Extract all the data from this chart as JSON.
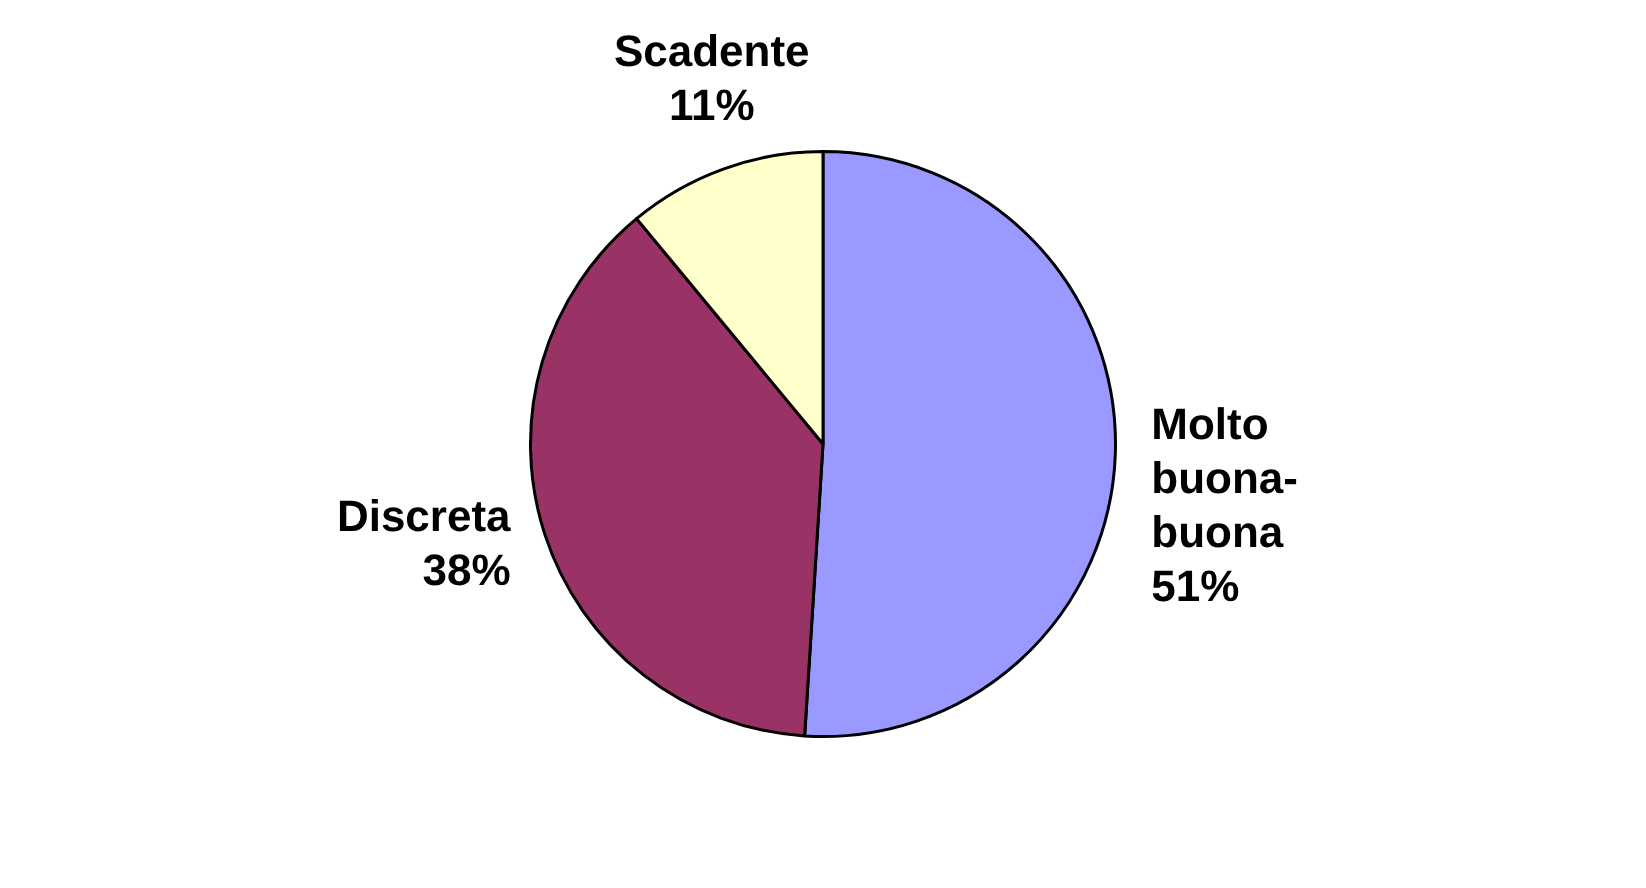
{
  "chart_data": {
    "type": "pie",
    "categories": [
      "Molto buona-buona",
      "Discreta",
      "Scadente"
    ],
    "values": [
      51,
      38,
      11
    ],
    "colors": [
      "#9999ff",
      "#993366",
      "#ffffcc"
    ],
    "value_labels": [
      "51%",
      "38%",
      "11%"
    ],
    "legend": false
  }
}
